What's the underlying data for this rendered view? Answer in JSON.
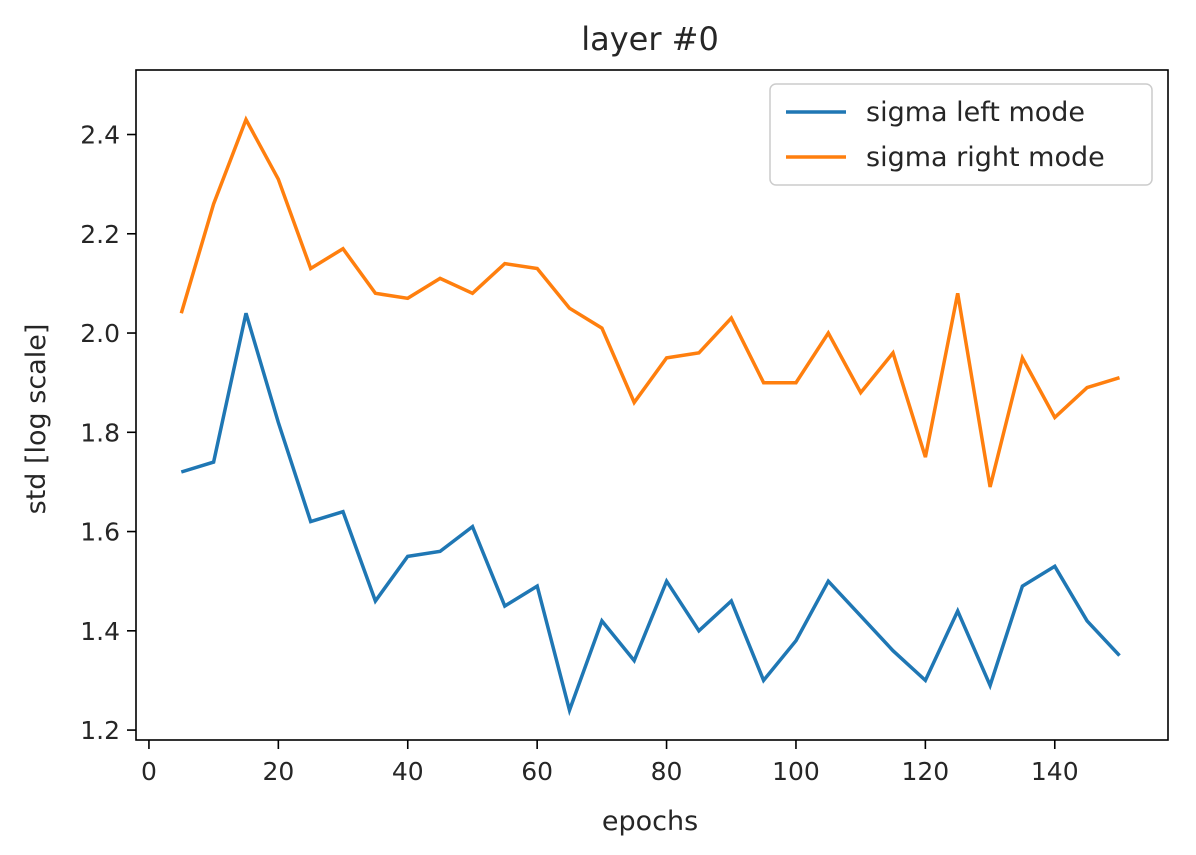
{
  "chart_data": {
    "type": "line",
    "title": "layer #0",
    "xlabel": "epochs",
    "ylabel": "std [log scale]",
    "xlim": [
      -2,
      157.5
    ],
    "ylim": [
      1.18,
      2.53
    ],
    "xticks": [
      0,
      20,
      40,
      60,
      80,
      100,
      120,
      140
    ],
    "yticks": [
      1.2,
      1.4,
      1.6,
      1.8,
      2.0,
      2.2,
      2.4
    ],
    "ytick_labels": [
      "1.2",
      "1.4",
      "1.6",
      "1.8",
      "2.0",
      "2.2",
      "2.4"
    ],
    "grid": false,
    "legend_position": "top-right",
    "x": [
      5,
      10,
      15,
      20,
      25,
      30,
      35,
      40,
      45,
      50,
      55,
      60,
      65,
      70,
      75,
      80,
      85,
      90,
      95,
      100,
      105,
      110,
      115,
      120,
      125,
      130,
      135,
      140,
      145,
      150
    ],
    "series": [
      {
        "name": "sigma left mode",
        "color": "#1f77b4",
        "values": [
          1.72,
          1.74,
          2.04,
          1.82,
          1.62,
          1.64,
          1.46,
          1.55,
          1.56,
          1.61,
          1.45,
          1.49,
          1.24,
          1.42,
          1.34,
          1.5,
          1.4,
          1.46,
          1.3,
          1.38,
          1.5,
          1.43,
          1.36,
          1.3,
          1.44,
          1.29,
          1.49,
          1.53,
          1.42,
          1.35
        ]
      },
      {
        "name": "sigma right mode",
        "color": "#ff7f0e",
        "values": [
          2.04,
          2.26,
          2.43,
          2.31,
          2.13,
          2.17,
          2.08,
          2.07,
          2.11,
          2.08,
          2.14,
          2.13,
          2.05,
          2.01,
          1.86,
          1.95,
          1.96,
          2.03,
          1.9,
          1.9,
          2.0,
          1.88,
          1.96,
          1.75,
          2.08,
          1.69,
          1.95,
          1.83,
          1.89,
          1.91
        ]
      }
    ]
  }
}
